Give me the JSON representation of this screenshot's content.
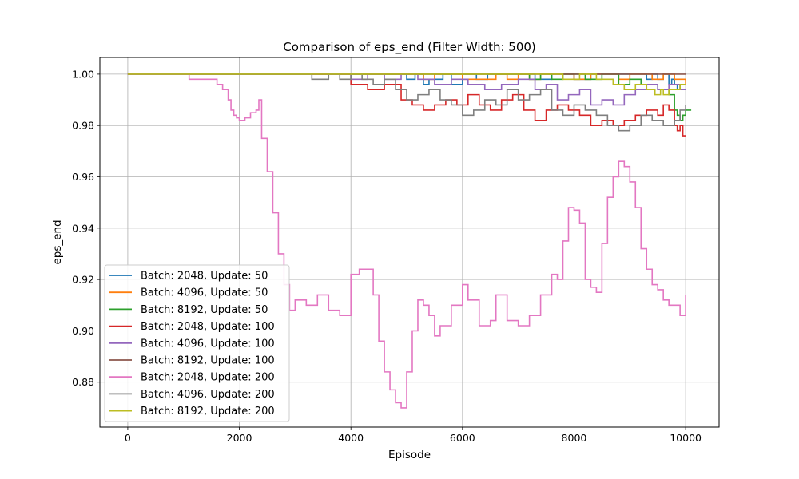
{
  "chart_data": {
    "type": "line",
    "title": "Comparison of eps_end (Filter Width: 500)",
    "xlabel": "Episode",
    "ylabel": "eps_end",
    "xlim": [
      -500,
      10600
    ],
    "ylim": [
      0.8625,
      1.0065
    ],
    "xticks": [
      0,
      2000,
      4000,
      6000,
      8000,
      10000
    ],
    "xtick_labels": [
      "0",
      "2000",
      "4000",
      "6000",
      "8000",
      "10000"
    ],
    "yticks": [
      0.88,
      0.9,
      0.92,
      0.94,
      0.96,
      0.98,
      1.0
    ],
    "ytick_labels": [
      "0.88",
      "0.90",
      "0.92",
      "0.94",
      "0.96",
      "0.98",
      "1.00"
    ],
    "grid": true,
    "legend_position": "lower-left",
    "series": [
      {
        "name": "Batch: 2048, Update: 50",
        "color": "#1f77b4",
        "x": [
          0,
          4900,
          5000,
          5150,
          5300,
          5400,
          5650,
          5800,
          6000,
          6250,
          6450,
          6700,
          7000,
          7300,
          7600,
          8000,
          8300,
          8600,
          9000,
          9300,
          9400,
          9500,
          9600,
          9700,
          9750,
          9800,
          9850,
          9900,
          10000
        ],
        "y": [
          1.0,
          1.0,
          0.998,
          1.0,
          0.996,
          0.998,
          1.0,
          0.996,
          1.0,
          0.998,
          1.0,
          1.0,
          1.0,
          0.998,
          1.0,
          0.998,
          1.0,
          1.0,
          1.0,
          0.998,
          1.0,
          0.998,
          1.0,
          0.996,
          0.998,
          0.996,
          0.994,
          0.996,
          0.996
        ]
      },
      {
        "name": "Batch: 4096, Update: 50",
        "color": "#ff7f0e",
        "x": [
          0,
          5200,
          5300,
          5500,
          5600,
          6000,
          6600,
          6800,
          7000,
          7200,
          7400,
          7700,
          8000,
          8300,
          8500,
          8800,
          9000,
          9200,
          9400,
          9600,
          9800,
          10000
        ],
        "y": [
          1.0,
          1.0,
          0.998,
          1.0,
          1.0,
          0.998,
          1.0,
          0.998,
          1.0,
          0.998,
          1.0,
          1.0,
          0.998,
          1.0,
          1.0,
          0.998,
          1.0,
          1.0,
          0.998,
          1.0,
          0.998,
          0.996
        ]
      },
      {
        "name": "Batch: 8192, Update: 50",
        "color": "#2ca02c",
        "x": [
          0,
          7000,
          7200,
          7400,
          7600,
          7800,
          8200,
          8500,
          8800,
          9000,
          9200,
          9400,
          9500,
          9600,
          9700,
          9800,
          9850,
          9900,
          9950,
          10000,
          10050,
          10100
        ],
        "y": [
          1.0,
          1.0,
          0.998,
          1.0,
          0.998,
          1.0,
          0.998,
          1.0,
          0.996,
          0.998,
          0.996,
          0.996,
          0.994,
          0.994,
          0.992,
          0.986,
          0.984,
          0.982,
          0.984,
          0.986,
          0.986,
          0.986
        ]
      },
      {
        "name": "Batch: 2048, Update: 100",
        "color": "#d62728",
        "x": [
          0,
          3900,
          4000,
          4300,
          4600,
          4900,
          5100,
          5300,
          5500,
          5700,
          5900,
          6100,
          6300,
          6500,
          6700,
          6900,
          7100,
          7300,
          7500,
          7700,
          7900,
          8100,
          8300,
          8500,
          8700,
          8900,
          9100,
          9300,
          9500,
          9600,
          9700,
          9800,
          9850,
          9900,
          9950,
          10000
        ],
        "y": [
          1.0,
          1.0,
          0.996,
          0.994,
          0.996,
          0.99,
          0.988,
          0.986,
          0.988,
          0.99,
          0.988,
          0.992,
          0.988,
          0.986,
          0.99,
          0.992,
          0.986,
          0.982,
          0.986,
          0.988,
          0.986,
          0.984,
          0.98,
          0.982,
          0.98,
          0.982,
          0.984,
          0.986,
          0.984,
          0.988,
          0.986,
          0.98,
          0.978,
          0.98,
          0.976,
          0.976
        ]
      },
      {
        "name": "Batch: 4096, Update: 100",
        "color": "#9467bd",
        "x": [
          0,
          3800,
          4000,
          4300,
          4600,
          4900,
          5200,
          5500,
          5800,
          6100,
          6400,
          6700,
          7000,
          7300,
          7500,
          7700,
          7900,
          8100,
          8300,
          8500,
          8700,
          8900,
          9100,
          9300,
          9500,
          9700,
          9900,
          10000
        ],
        "y": [
          1.0,
          1.0,
          0.998,
          1.0,
          0.998,
          1.0,
          0.998,
          0.996,
          0.998,
          0.996,
          0.994,
          0.996,
          0.998,
          0.994,
          0.996,
          0.99,
          0.992,
          0.994,
          0.988,
          0.99,
          0.988,
          0.992,
          0.994,
          0.996,
          0.994,
          0.996,
          0.994,
          0.994
        ]
      },
      {
        "name": "Batch: 8192, Update: 100",
        "color": "#8c564b",
        "x": [
          0,
          10000
        ],
        "y": [
          1.0,
          1.0
        ]
      },
      {
        "name": "Batch: 2048, Update: 200",
        "color": "#e377c2",
        "x": [
          0,
          1100,
          1600,
          1700,
          1800,
          1850,
          1900,
          1950,
          2000,
          2100,
          2200,
          2300,
          2350,
          2400,
          2500,
          2600,
          2700,
          2800,
          2900,
          3000,
          3200,
          3400,
          3600,
          3800,
          4000,
          4150,
          4300,
          4400,
          4500,
          4600,
          4700,
          4800,
          4900,
          5000,
          5100,
          5200,
          5300,
          5400,
          5500,
          5600,
          5800,
          6000,
          6100,
          6300,
          6500,
          6600,
          6800,
          7000,
          7200,
          7400,
          7600,
          7700,
          7800,
          7900,
          8000,
          8100,
          8200,
          8300,
          8400,
          8500,
          8600,
          8700,
          8800,
          8900,
          9000,
          9100,
          9200,
          9300,
          9400,
          9500,
          9600,
          9700,
          9800,
          9900,
          10000
        ],
        "y": [
          1.0,
          0.998,
          0.996,
          0.994,
          0.99,
          0.986,
          0.984,
          0.983,
          0.982,
          0.983,
          0.985,
          0.986,
          0.99,
          0.975,
          0.962,
          0.946,
          0.93,
          0.918,
          0.908,
          0.912,
          0.91,
          0.914,
          0.908,
          0.906,
          0.922,
          0.924,
          0.924,
          0.914,
          0.896,
          0.884,
          0.877,
          0.872,
          0.87,
          0.884,
          0.9,
          0.912,
          0.91,
          0.906,
          0.898,
          0.902,
          0.91,
          0.918,
          0.912,
          0.902,
          0.904,
          0.914,
          0.904,
          0.902,
          0.906,
          0.914,
          0.922,
          0.92,
          0.935,
          0.948,
          0.947,
          0.942,
          0.92,
          0.917,
          0.915,
          0.934,
          0.952,
          0.96,
          0.966,
          0.964,
          0.958,
          0.948,
          0.932,
          0.924,
          0.918,
          0.916,
          0.912,
          0.91,
          0.91,
          0.906,
          0.914
        ]
      },
      {
        "name": "Batch: 4096, Update: 200",
        "color": "#7f7f7f",
        "x": [
          0,
          2900,
          3300,
          3600,
          3800,
          4000,
          4200,
          4400,
          4600,
          4800,
          5000,
          5200,
          5400,
          5600,
          5800,
          6000,
          6200,
          6400,
          6600,
          6800,
          7000,
          7200,
          7400,
          7600,
          7800,
          8000,
          8200,
          8400,
          8600,
          8800,
          9000,
          9200,
          9400,
          9600,
          9700,
          9800,
          9900,
          10000
        ],
        "y": [
          1.0,
          1.0,
          0.998,
          1.0,
          0.998,
          1.0,
          0.998,
          0.996,
          0.998,
          0.994,
          0.99,
          0.992,
          0.994,
          0.99,
          0.988,
          0.984,
          0.986,
          0.99,
          0.988,
          0.994,
          0.99,
          0.992,
          0.994,
          0.986,
          0.984,
          0.988,
          0.986,
          0.984,
          0.98,
          0.978,
          0.98,
          0.984,
          0.982,
          0.98,
          0.98,
          0.982,
          0.986,
          0.988
        ]
      },
      {
        "name": "Batch: 8192, Update: 200",
        "color": "#bcbd22",
        "x": [
          0,
          7600,
          7800,
          8100,
          8400,
          8700,
          8900,
          9100,
          9300,
          9450,
          9550,
          9600,
          9700,
          9900,
          10000
        ],
        "y": [
          1.0,
          1.0,
          0.998,
          1.0,
          0.998,
          0.996,
          0.994,
          0.996,
          0.994,
          0.992,
          0.994,
          0.992,
          0.994,
          0.996,
          0.996
        ]
      }
    ]
  }
}
